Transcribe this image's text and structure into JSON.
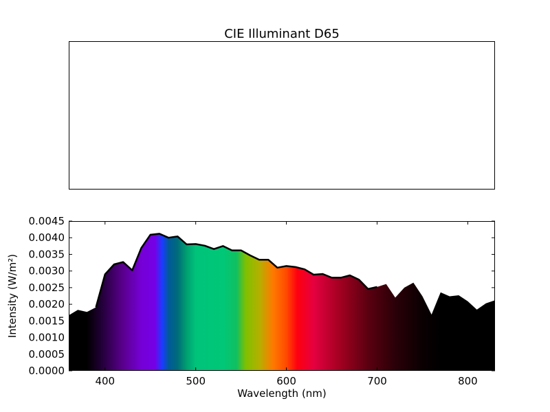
{
  "chart_data": [
    {
      "type": "blank",
      "title": "CIE Illuminant D65"
    },
    {
      "type": "area",
      "xlabel": "Wavelength (nm)",
      "ylabel": "Intensity (W/m²)",
      "xlim": [
        360,
        830
      ],
      "ylim": [
        0,
        0.0045
      ],
      "xticks": [
        400,
        500,
        600,
        700,
        800
      ],
      "yticks": [
        0.0,
        0.0005,
        0.001,
        0.0015,
        0.002,
        0.0025,
        0.003,
        0.0035,
        0.004,
        0.0045
      ],
      "xtick_labels": [
        "400",
        "500",
        "600",
        "700",
        "800"
      ],
      "ytick_labels": [
        "0.0000",
        "0.0005",
        "0.0010",
        "0.0015",
        "0.0020",
        "0.0025",
        "0.0030",
        "0.0035",
        "0.0040",
        "0.0045"
      ],
      "fill": "visible-spectrum gradient",
      "line_color": "#000000",
      "series": [
        {
          "x": [
            360,
            370,
            380,
            390,
            400,
            410,
            420,
            430,
            440,
            450,
            460,
            470,
            480,
            490,
            500,
            510,
            520,
            530,
            540,
            550,
            560,
            570,
            580,
            590,
            600,
            610,
            620,
            630,
            640,
            650,
            660,
            670,
            680,
            690,
            700,
            710,
            720,
            730,
            740,
            750,
            760,
            770,
            780,
            790,
            800,
            810,
            820,
            830
          ],
          "values": [
            0.00167,
            0.00183,
            0.00177,
            0.00191,
            0.0029,
            0.0032,
            0.00327,
            0.00302,
            0.00369,
            0.00409,
            0.00412,
            0.004,
            0.00404,
            0.0038,
            0.00381,
            0.00376,
            0.00366,
            0.00375,
            0.00362,
            0.00362,
            0.00347,
            0.00334,
            0.00334,
            0.0031,
            0.00315,
            0.00312,
            0.00305,
            0.00289,
            0.00291,
            0.0028,
            0.0028,
            0.00287,
            0.00274,
            0.00246,
            0.00252,
            0.00261,
            0.0022,
            0.0025,
            0.00265,
            0.00224,
            0.00169,
            0.00236,
            0.00224,
            0.00227,
            0.00209,
            0.00184,
            0.00203,
            0.00212
          ]
        }
      ]
    }
  ]
}
